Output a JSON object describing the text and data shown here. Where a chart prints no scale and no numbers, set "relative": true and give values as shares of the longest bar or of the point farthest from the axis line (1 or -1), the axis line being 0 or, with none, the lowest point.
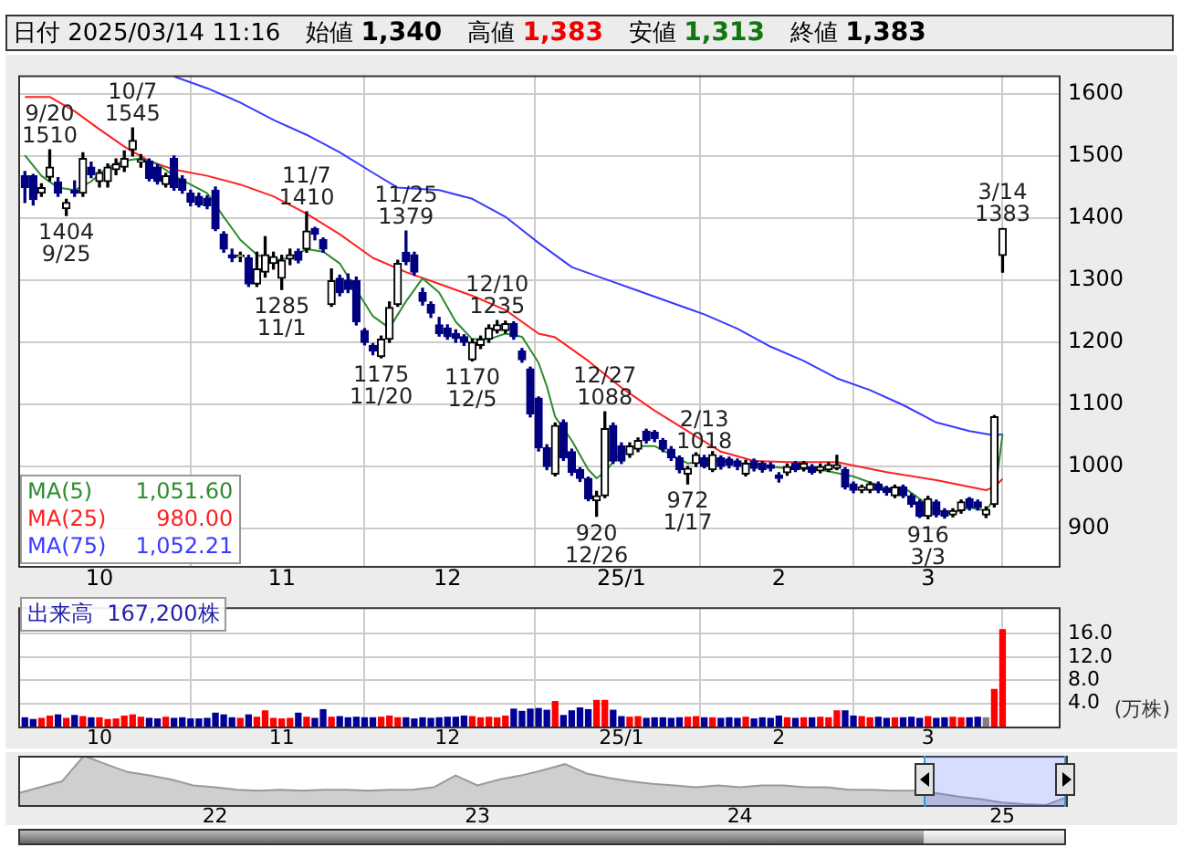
{
  "chart_data": [
    {
      "type": "candlestick",
      "title": "日付 2025/03/14 11:16",
      "categories": [
        null,
        null,
        null,
        null,
        null,
        null,
        null,
        null,
        null,
        "10",
        null,
        null,
        null,
        null,
        null,
        null,
        null,
        null,
        null,
        null,
        null,
        null,
        null,
        null,
        null,
        null,
        null,
        null,
        null,
        null,
        null,
        "11",
        null,
        null,
        null,
        null,
        null,
        null,
        null,
        null,
        null,
        null,
        null,
        null,
        null,
        null,
        null,
        null,
        null,
        null,
        null,
        "12",
        null,
        null,
        null,
        null,
        null,
        null,
        null,
        null,
        null,
        null,
        null,
        null,
        null,
        null,
        null,
        null,
        null,
        null,
        null,
        null,
        "25/1",
        null,
        null,
        null,
        null,
        null,
        null,
        null,
        null,
        null,
        null,
        null,
        null,
        null,
        null,
        null,
        null,
        null,
        null,
        "2",
        null,
        null,
        null,
        null,
        null,
        null,
        null,
        null,
        null,
        null,
        null,
        null,
        null,
        null,
        null,
        null,
        null,
        "3",
        null,
        null,
        null,
        null,
        null,
        null,
        null,
        null,
        null
      ],
      "ohlc": [
        [
          1468,
          1475,
          1425,
          1449
        ],
        [
          1468,
          1470,
          1421,
          1430
        ],
        [
          1440,
          1455,
          1435,
          1449
        ],
        [
          1466,
          1510,
          1460,
          1482
        ],
        [
          1458,
          1465,
          1435,
          1440
        ],
        [
          1415,
          1430,
          1404,
          1425
        ],
        [
          1445,
          1460,
          1435,
          1440
        ],
        [
          1440,
          1505,
          1435,
          1496
        ],
        [
          1482,
          1490,
          1465,
          1470
        ],
        [
          1459,
          1478,
          1450,
          1473
        ],
        [
          1459,
          1487,
          1450,
          1482
        ],
        [
          1478,
          1495,
          1470,
          1487
        ],
        [
          1482,
          1508,
          1475,
          1496
        ],
        [
          1510,
          1545,
          1500,
          1525
        ],
        [
          1490,
          1502,
          1482,
          1494
        ],
        [
          1492,
          1495,
          1460,
          1464
        ],
        [
          1482,
          1486,
          1455,
          1459
        ],
        [
          1454,
          1472,
          1450,
          1468
        ],
        [
          1496,
          1500,
          1445,
          1449
        ],
        [
          1463,
          1468,
          1440,
          1445
        ],
        [
          1440,
          1445,
          1420,
          1426
        ],
        [
          1435,
          1440,
          1418,
          1421
        ],
        [
          1432,
          1436,
          1415,
          1420
        ],
        [
          1445,
          1450,
          1380,
          1383
        ],
        [
          1374,
          1378,
          1345,
          1350
        ],
        [
          1341,
          1350,
          1330,
          1336
        ],
        [
          1338,
          1345,
          1330,
          1340
        ],
        [
          1336,
          1340,
          1290,
          1294
        ],
        [
          1294,
          1345,
          1290,
          1318
        ],
        [
          1313,
          1370,
          1305,
          1341
        ],
        [
          1327,
          1345,
          1318,
          1338
        ],
        [
          1303,
          1340,
          1285,
          1332
        ],
        [
          1334,
          1350,
          1325,
          1341
        ],
        [
          1346,
          1350,
          1328,
          1332
        ],
        [
          1350,
          1410,
          1345,
          1379
        ],
        [
          1383,
          1385,
          1365,
          1374
        ],
        [
          1365,
          1368,
          1345,
          1350
        ],
        [
          1261,
          1318,
          1258,
          1299
        ],
        [
          1303,
          1308,
          1275,
          1280
        ],
        [
          1300,
          1310,
          1280,
          1285
        ],
        [
          1299,
          1305,
          1228,
          1233
        ],
        [
          1219,
          1222,
          1196,
          1200
        ],
        [
          1195,
          1198,
          1180,
          1186
        ],
        [
          1177,
          1210,
          1175,
          1205
        ],
        [
          1205,
          1265,
          1200,
          1256
        ],
        [
          1261,
          1332,
          1258,
          1327
        ],
        [
          1345,
          1379,
          1325,
          1330
        ],
        [
          1341,
          1345,
          1308,
          1313
        ],
        [
          1280,
          1287,
          1260,
          1266
        ],
        [
          1261,
          1265,
          1240,
          1247
        ],
        [
          1228,
          1240,
          1210,
          1214
        ],
        [
          1223,
          1228,
          1205,
          1209
        ],
        [
          1214,
          1220,
          1200,
          1206
        ],
        [
          1209,
          1212,
          1195,
          1200
        ],
        [
          1172,
          1205,
          1170,
          1200
        ],
        [
          1195,
          1210,
          1190,
          1205
        ],
        [
          1205,
          1228,
          1200,
          1223
        ],
        [
          1219,
          1235,
          1215,
          1228
        ],
        [
          1219,
          1234,
          1215,
          1230
        ],
        [
          1230,
          1233,
          1205,
          1209
        ],
        [
          1186,
          1190,
          1168,
          1172
        ],
        [
          1157,
          1160,
          1080,
          1085
        ],
        [
          1110,
          1112,
          1025,
          1030
        ],
        [
          1030,
          1035,
          995,
          1000
        ],
        [
          988,
          1070,
          985,
          1066
        ],
        [
          1071,
          1075,
          1010,
          1014
        ],
        [
          1024,
          1028,
          986,
          991
        ],
        [
          995,
          998,
          976,
          981
        ],
        [
          981,
          983,
          945,
          948
        ],
        [
          945,
          960,
          920,
          953
        ],
        [
          953,
          1088,
          950,
          1061
        ],
        [
          1066,
          1070,
          1005,
          1009
        ],
        [
          1033,
          1038,
          1005,
          1009
        ],
        [
          1019,
          1038,
          1015,
          1033
        ],
        [
          1028,
          1046,
          1024,
          1042
        ],
        [
          1057,
          1060,
          1038,
          1042
        ],
        [
          1055,
          1058,
          1040,
          1045
        ],
        [
          1042,
          1045,
          1024,
          1028
        ],
        [
          1028,
          1032,
          1010,
          1014
        ],
        [
          1014,
          1017,
          990,
          995
        ],
        [
          988,
          1000,
          972,
          997
        ],
        [
          1005,
          1022,
          1000,
          1019
        ],
        [
          1014,
          1018,
          998,
          1000
        ],
        [
          995,
          1024,
          992,
          1019
        ],
        [
          1014,
          1017,
          996,
          1000
        ],
        [
          1012,
          1015,
          998,
          1002
        ],
        [
          1009,
          1012,
          995,
          1000
        ],
        [
          988,
          1010,
          985,
          1005
        ],
        [
          1009,
          1012,
          993,
          997
        ],
        [
          1005,
          1008,
          991,
          995
        ],
        [
          1003,
          1006,
          993,
          997
        ],
        [
          986,
          990,
          975,
          981
        ],
        [
          990,
          1004,
          986,
          1000
        ],
        [
          1005,
          1008,
          992,
          995
        ],
        [
          997,
          1008,
          993,
          1005
        ],
        [
          1000,
          1003,
          988,
          991
        ],
        [
          993,
          1004,
          990,
          1000
        ],
        [
          995,
          1006,
          992,
          1003
        ],
        [
          997,
          1018,
          995,
          1003
        ],
        [
          995,
          998,
          964,
          967
        ],
        [
          972,
          975,
          958,
          962
        ],
        [
          962,
          970,
          958,
          967
        ],
        [
          962,
          975,
          958,
          972
        ],
        [
          972,
          975,
          958,
          962
        ],
        [
          965,
          968,
          954,
          958
        ],
        [
          953,
          970,
          950,
          967
        ],
        [
          967,
          970,
          950,
          953
        ],
        [
          953,
          956,
          935,
          939
        ],
        [
          943,
          946,
          918,
          920
        ],
        [
          920,
          952,
          916,
          948
        ],
        [
          943,
          946,
          919,
          922
        ],
        [
          929,
          932,
          917,
          920
        ],
        [
          922,
          932,
          919,
          929
        ],
        [
          929,
          946,
          925,
          943
        ],
        [
          948,
          950,
          930,
          934
        ],
        [
          943,
          946,
          930,
          934
        ],
        [
          922,
          935,
          918,
          931
        ],
        [
          939,
          1082,
          935,
          1080
        ],
        [
          1340,
          1383,
          1313,
          1383
        ]
      ],
      "series": [
        {
          "type": "line",
          "name": "MA(5) 1,051.60",
          "color": "#2e8b2e",
          "values": [
            1501,
            null,
            1468,
            null,
            1449,
            null,
            1445,
            null,
            1459,
            null,
            1482,
            null,
            1492,
            null,
            1496,
            null,
            1487,
            null,
            1468,
            null,
            1454,
            null,
            1440,
            null,
            1402,
            null,
            1365,
            null,
            1341,
            null,
            1332,
            null,
            1336,
            null,
            1350,
            null,
            1346,
            null,
            1327,
            null,
            null,
            null,
            1242,
            null,
            1223,
            null,
            1266,
            null,
            1303,
            null,
            1280,
            null,
            1233,
            null,
            1205,
            null,
            1205,
            null,
            1214,
            null,
            1209,
            null,
            1167,
            1129,
            1080,
            null,
            1042,
            null,
            995,
            981,
            991,
            null,
            1024,
            null,
            1033,
            null,
            1033,
            null,
            1019,
            null,
            1005,
            null,
            1009,
            null,
            1009,
            null,
            null,
            null,
            1003,
            null,
            null,
            null,
            997,
            null,
            null,
            null,
            995,
            null,
            null,
            null,
            984,
            null,
            null,
            null,
            965,
            null,
            967,
            null,
            948,
            null,
            929,
            null,
            925,
            null,
            934,
            null,
            929,
            948,
            1052
          ]
        },
        {
          "type": "line",
          "name": "MA(25) 980.00",
          "color": "#ff2020",
          "values": [
            1595,
            null,
            null,
            1595,
            null,
            null,
            1572,
            null,
            null,
            1543,
            null,
            null,
            1515,
            null,
            null,
            1492,
            null,
            null,
            1478,
            null,
            null,
            null,
            1468,
            null,
            null,
            null,
            1454,
            null,
            null,
            null,
            1435,
            null,
            null,
            null,
            1407,
            null,
            null,
            null,
            1374,
            null,
            null,
            null,
            1336,
            null,
            null,
            null,
            1313,
            null,
            null,
            null,
            1294,
            null,
            null,
            null,
            1275,
            null,
            null,
            null,
            1252,
            null,
            null,
            null,
            1214,
            null,
            1208,
            null,
            null,
            null,
            1170,
            null,
            null,
            null,
            1127,
            null,
            null,
            null,
            1090,
            null,
            null,
            null,
            1057,
            null,
            null,
            null,
            1024,
            null,
            null,
            null,
            1009,
            null,
            null,
            null,
            1007,
            null,
            null,
            null,
            null,
            null,
            1007,
            null,
            null,
            null,
            null,
            null,
            991,
            null,
            null,
            null,
            null,
            null,
            978,
            null,
            null,
            null,
            null,
            null,
            962,
            967,
            980
          ]
        },
        {
          "type": "line",
          "name": "MA(75) 1,052.21",
          "color": "#3a3aff",
          "values": [
            null,
            null,
            null,
            null,
            null,
            null,
            null,
            null,
            null,
            null,
            null,
            null,
            null,
            null,
            null,
            null,
            null,
            null,
            1628,
            null,
            null,
            null,
            1609,
            null,
            null,
            null,
            1586,
            null,
            null,
            null,
            1558,
            null,
            null,
            null,
            1534,
            null,
            null,
            null,
            1506,
            null,
            null,
            null,
            1473,
            null,
            null,
            1449,
            null,
            null,
            null,
            null,
            1445,
            null,
            null,
            null,
            1431,
            null,
            null,
            null,
            1402,
            null,
            null,
            null,
            1360,
            null,
            null,
            null,
            1321,
            null,
            null,
            null,
            1302,
            null,
            null,
            null,
            1283,
            null,
            null,
            null,
            1264,
            null,
            null,
            null,
            1245,
            null,
            null,
            null,
            1222,
            null,
            null,
            null,
            1193,
            null,
            null,
            null,
            1170,
            null,
            null,
            null,
            1142,
            null,
            null,
            null,
            1123,
            null,
            null,
            null,
            1099,
            null,
            null,
            null,
            1071,
            null,
            null,
            null,
            1057,
            null,
            null,
            1050,
            1052
          ]
        }
      ],
      "ylim": [
        840,
        1630
      ],
      "yticks": [
        900,
        1000,
        1100,
        1200,
        1300,
        1400,
        1500,
        1600
      ],
      "grid": true,
      "marker": "none",
      "annotations": [
        "始値 1,340",
        "高値 1,383",
        "安値 1,313",
        "終値 1,383",
        {
          "text": "9/20\n1510",
          "y": 1510
        },
        {
          "text": "1404\n9/25",
          "y": 1404
        },
        {
          "text": "10/7\n1545",
          "y": 1545
        },
        {
          "text": "1285\n11/1",
          "y": 1285
        },
        {
          "text": "11/7\n1410",
          "y": 1410
        },
        {
          "text": "1175\n11/20",
          "y": 1175
        },
        {
          "text": "11/25\n1379",
          "y": 1379
        },
        {
          "text": "1170\n12/5",
          "y": 1170
        },
        {
          "text": "12/10\n1235",
          "y": 1235
        },
        {
          "text": "920\n12/26",
          "y": 920
        },
        {
          "text": "12/27\n1088",
          "y": 1088
        },
        {
          "text": "972\n1/17",
          "y": 972
        },
        {
          "text": "2/13\n1018",
          "y": 1018
        },
        {
          "text": "916\n3/3",
          "y": 916
        },
        {
          "text": "3/14\n1383",
          "y": 1383
        }
      ]
    },
    {
      "type": "bar",
      "title": "出来高  167,200株",
      "ylabel": "(万株)",
      "categories": [
        null,
        null,
        null,
        null,
        null,
        null,
        null,
        null,
        null,
        "10",
        null,
        null,
        null,
        null,
        null,
        null,
        null,
        null,
        null,
        null,
        null,
        null,
        null,
        null,
        null,
        null,
        null,
        null,
        null,
        null,
        null,
        "11",
        null,
        null,
        null,
        null,
        null,
        null,
        null,
        null,
        null,
        null,
        null,
        null,
        null,
        null,
        null,
        null,
        null,
        null,
        null,
        "12",
        null,
        null,
        null,
        null,
        null,
        null,
        null,
        null,
        null,
        null,
        null,
        null,
        null,
        null,
        null,
        null,
        null,
        null,
        null,
        null,
        "25/1",
        null,
        null,
        null,
        null,
        null,
        null,
        null,
        null,
        null,
        null,
        null,
        null,
        null,
        null,
        null,
        null,
        null,
        null,
        "2",
        null,
        null,
        null,
        null,
        null,
        null,
        null,
        null,
        null,
        null,
        null,
        null,
        null,
        null,
        null,
        null,
        null,
        "3",
        null,
        null,
        null,
        null,
        null,
        null,
        null,
        null,
        null
      ],
      "values": [
        1.5,
        1.2,
        1.4,
        1.8,
        2.0,
        1.4,
        1.9,
        1.7,
        1.5,
        1.5,
        1.2,
        1.3,
        1.8,
        2.0,
        1.6,
        1.4,
        1.3,
        1.6,
        1.4,
        1.5,
        1.3,
        1.3,
        1.4,
        2.3,
        2.0,
        1.5,
        1.4,
        2.0,
        1.6,
        2.7,
        1.4,
        1.3,
        1.4,
        2.3,
        1.6,
        1.4,
        2.9,
        1.6,
        1.7,
        1.5,
        1.6,
        1.5,
        1.5,
        1.6,
        1.8,
        1.5,
        1.5,
        1.3,
        1.5,
        1.4,
        1.5,
        1.6,
        1.6,
        1.8,
        1.7,
        1.5,
        1.6,
        1.5,
        1.8,
        3.0,
        2.6,
        3.0,
        3.1,
        2.8,
        4.3,
        1.9,
        2.7,
        3.2,
        2.9,
        4.5,
        4.5,
        2.8,
        1.7,
        1.6,
        1.7,
        1.4,
        1.5,
        1.5,
        1.4,
        1.5,
        1.6,
        1.7,
        1.5,
        1.5,
        1.4,
        1.5,
        1.4,
        1.6,
        1.3,
        1.5,
        1.4,
        1.8,
        1.5,
        1.4,
        1.5,
        1.5,
        1.6,
        1.5,
        2.7,
        2.7,
        1.8,
        1.7,
        1.5,
        1.6,
        1.4,
        1.5,
        1.5,
        1.6,
        1.4,
        1.7,
        1.4,
        1.5,
        1.6,
        1.5,
        1.5,
        1.6,
        1.5,
        6.4,
        16.7
      ],
      "colors": [
        "#000099",
        "#000099",
        "#ff0000",
        "#ff0000",
        "#000099",
        "#ff0000",
        "#000099",
        "#ff0000",
        "#000099",
        "#ff0000",
        "#ff0000",
        "#ff0000",
        "#ff0000",
        "#ff0000",
        "#ff0000",
        "#000099",
        "#000099",
        "#ff0000",
        "#000099",
        "#000099",
        "#000099",
        "#000099",
        "#000099",
        "#000099",
        "#000099",
        "#000099",
        "#ff0000",
        "#000099",
        "#ff0000",
        "#ff0000",
        "#ff0000",
        "#ff0000",
        "#ff0000",
        "#000099",
        "#ff0000",
        "#000099",
        "#000099",
        "#ff0000",
        "#000099",
        "#000099",
        "#000099",
        "#000099",
        "#000099",
        "#ff0000",
        "#ff0000",
        "#ff0000",
        "#000099",
        "#000099",
        "#000099",
        "#000099",
        "#000099",
        "#000099",
        "#000099",
        "#000099",
        "#ff0000",
        "#ff0000",
        "#ff0000",
        "#ff0000",
        "#ff0000",
        "#000099",
        "#000099",
        "#000099",
        "#000099",
        "#000099",
        "#ff0000",
        "#000099",
        "#000099",
        "#000099",
        "#000099",
        "#ff0000",
        "#ff0000",
        "#000099",
        "#000099",
        "#ff0000",
        "#ff0000",
        "#000099",
        "#000099",
        "#000099",
        "#000099",
        "#000099",
        "#ff0000",
        "#ff0000",
        "#000099",
        "#ff0000",
        "#000099",
        "#000099",
        "#000099",
        "#ff0000",
        "#000099",
        "#000099",
        "#000099",
        "#000099",
        "#ff0000",
        "#000099",
        "#ff0000",
        "#000099",
        "#ff0000",
        "#ff0000",
        "#ff0000",
        "#000099",
        "#000099",
        "#ff0000",
        "#ff0000",
        "#000099",
        "#000099",
        "#ff0000",
        "#000099",
        "#000099",
        "#000099",
        "#ff0000",
        "#000099",
        "#000099",
        "#ff0000",
        "#ff0000",
        "#000099",
        "#000099",
        "#808080",
        "#ff0000",
        "#ff0000"
      ],
      "ylim": [
        0,
        20.6
      ],
      "yticks": [
        {
          "value": 4,
          "label": "4.0"
        },
        {
          "value": 8,
          "label": "8.0"
        },
        {
          "value": 12,
          "label": "12.0"
        },
        {
          "value": 16,
          "label": "16.0"
        }
      ],
      "grid": true
    },
    {
      "type": "area",
      "relative": true,
      "color": "#999999",
      "categories": [
        null,
        null,
        null,
        null,
        null,
        null,
        null,
        null,
        null,
        "22",
        null,
        null,
        null,
        null,
        null,
        null,
        null,
        null,
        null,
        null,
        null,
        "23",
        null,
        null,
        null,
        null,
        null,
        null,
        null,
        null,
        null,
        null,
        null,
        "24",
        null,
        null,
        null,
        null,
        null,
        null,
        null,
        null,
        null,
        null,
        null,
        "25",
        null,
        null,
        null
      ],
      "values": [
        0.24,
        0.36,
        0.48,
        1,
        0.83,
        0.67,
        0.6,
        0.52,
        0.4,
        0.36,
        0.31,
        0.29,
        0.31,
        0.29,
        0.31,
        0.31,
        0.29,
        0.31,
        0.31,
        0.36,
        0.6,
        0.4,
        0.52,
        0.6,
        0.71,
        0.83,
        0.64,
        0.55,
        0.48,
        0.43,
        0.4,
        0.36,
        0.4,
        0.36,
        0.4,
        0.4,
        0.36,
        0.36,
        0.31,
        0.31,
        0.29,
        0.29,
        0.24,
        0.17,
        0.12,
        0.05,
        0.02,
        0,
        0.17
      ]
    }
  ]
}
